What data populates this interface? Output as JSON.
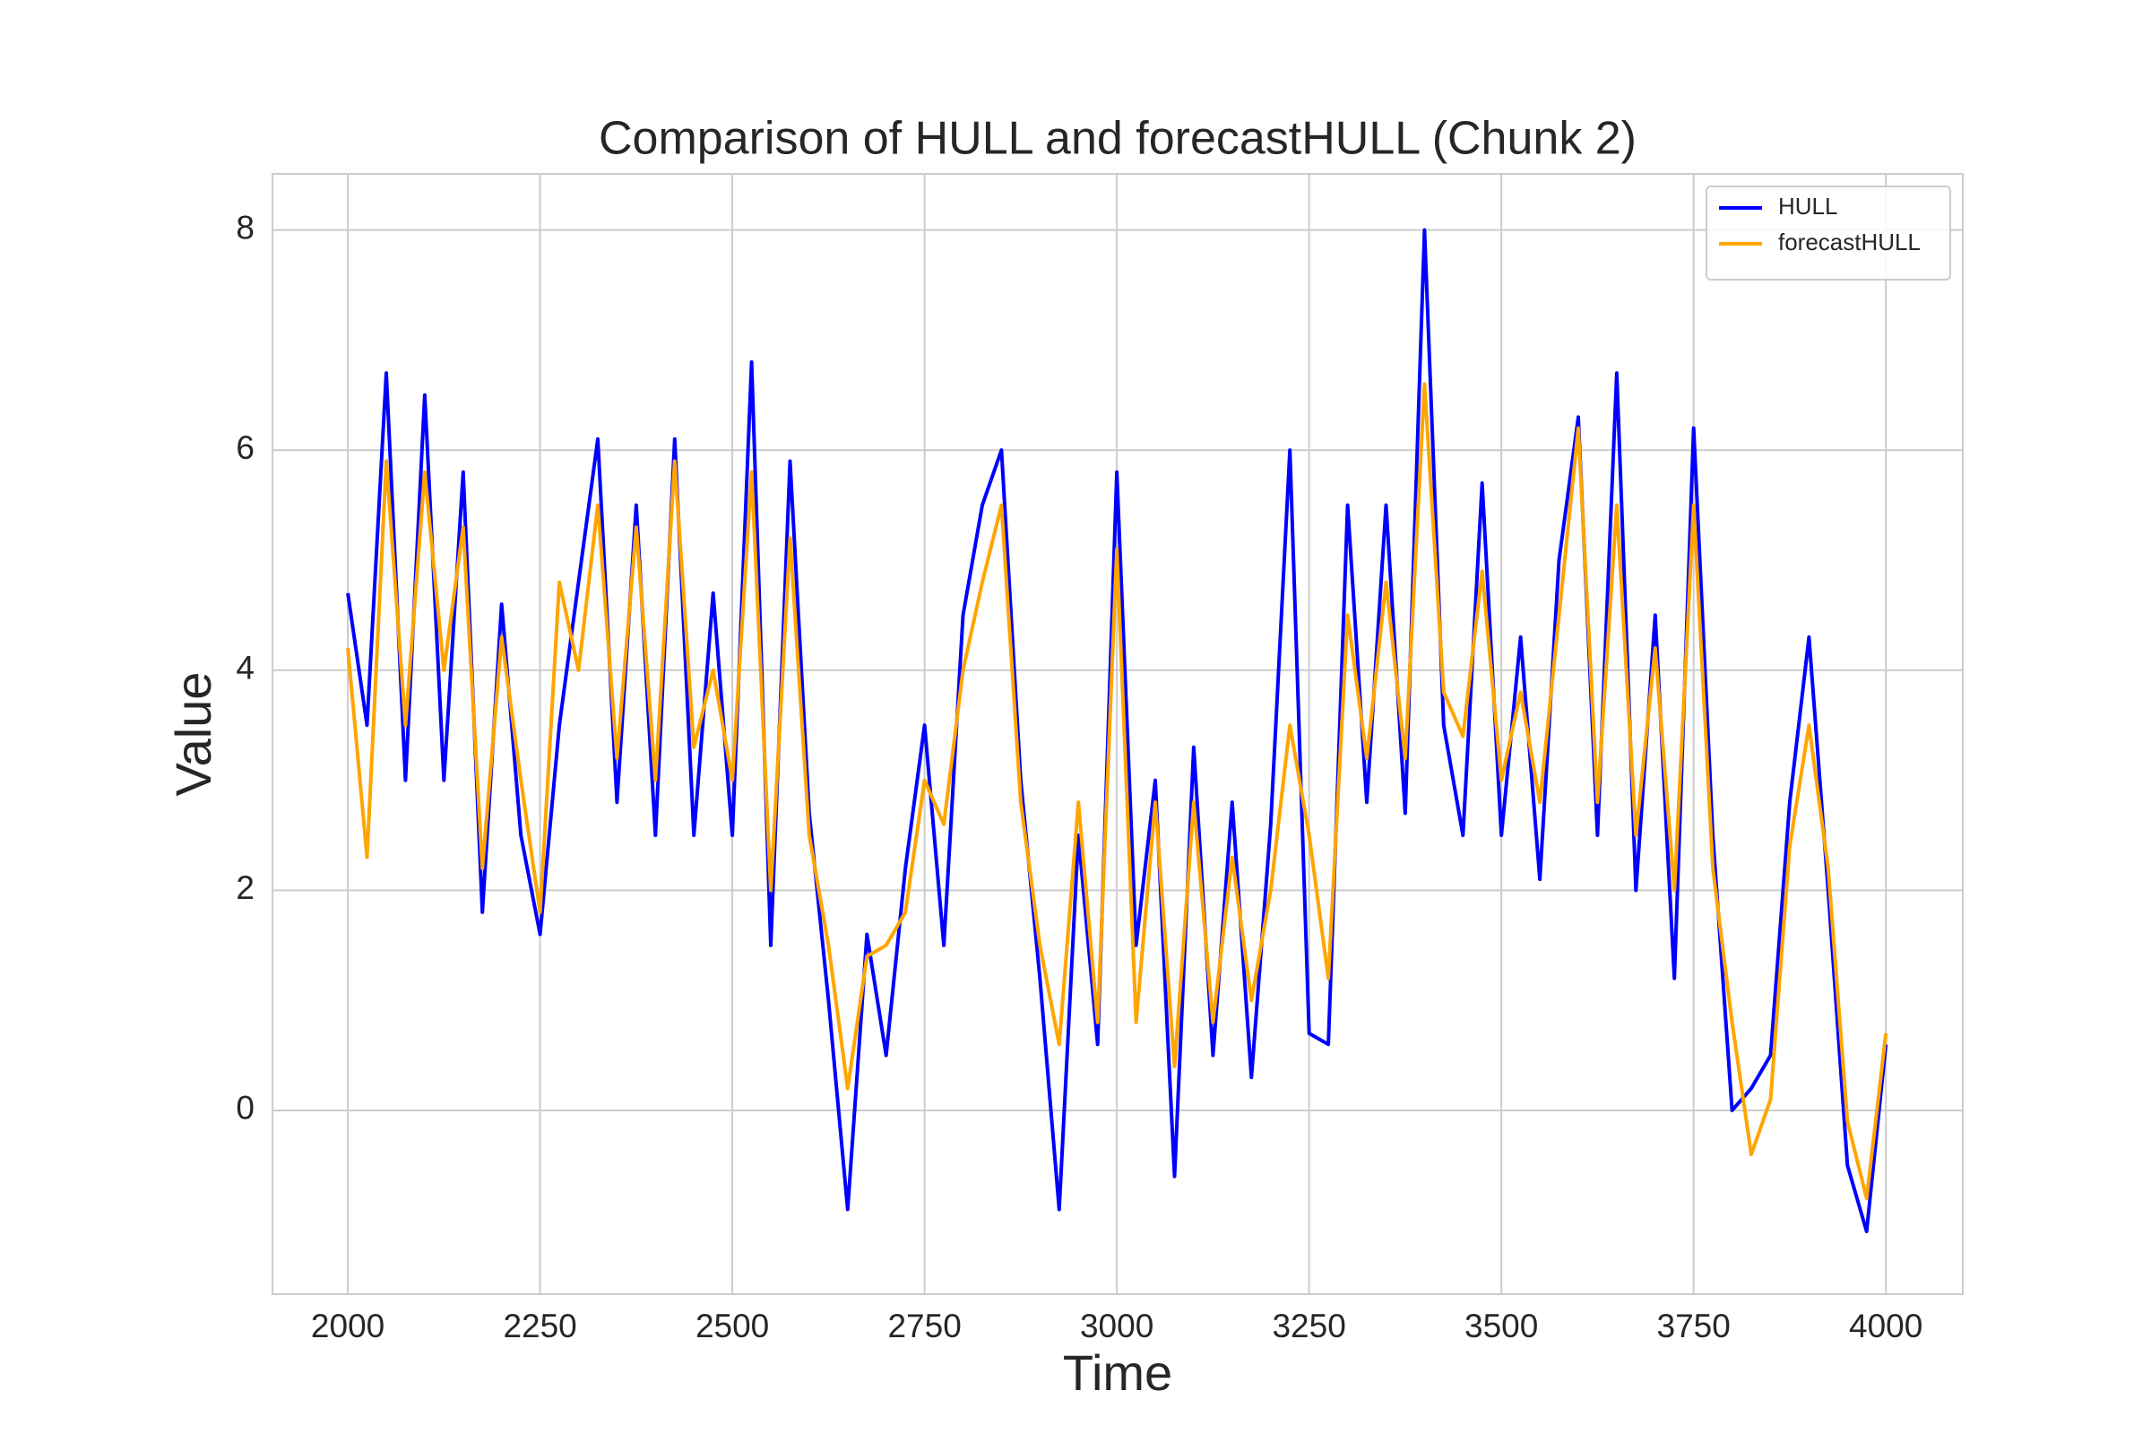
{
  "chart_data": {
    "type": "line",
    "title": "Comparison of HULL and forecastHULL (Chunk 2)",
    "x_label": "Time",
    "y_label": "Value",
    "x": [
      2000,
      2025,
      2050,
      2075,
      2100,
      2125,
      2150,
      2175,
      2200,
      2225,
      2250,
      2275,
      2300,
      2325,
      2350,
      2375,
      2400,
      2425,
      2450,
      2475,
      2500,
      2525,
      2550,
      2575,
      2600,
      2625,
      2650,
      2675,
      2700,
      2725,
      2750,
      2775,
      2800,
      2825,
      2850,
      2875,
      2900,
      2925,
      2950,
      2975,
      3000,
      3025,
      3050,
      3075,
      3100,
      3125,
      3150,
      3175,
      3200,
      3225,
      3250,
      3275,
      3300,
      3325,
      3350,
      3375,
      3400,
      3425,
      3450,
      3475,
      3500,
      3525,
      3550,
      3575,
      3600,
      3625,
      3650,
      3675,
      3700,
      3725,
      3750,
      3775,
      3800,
      3825,
      3850,
      3875,
      3900,
      3925,
      3950,
      3975,
      4000
    ],
    "series": [
      {
        "name": "HULL",
        "color": "#0000ff",
        "values": [
          4.7,
          3.5,
          6.7,
          3.0,
          6.5,
          3.0,
          5.8,
          1.8,
          4.6,
          2.5,
          1.6,
          3.5,
          4.8,
          6.1,
          2.8,
          5.5,
          2.5,
          6.1,
          2.5,
          4.7,
          2.5,
          6.8,
          1.5,
          5.9,
          2.7,
          1.0,
          -0.9,
          1.6,
          0.5,
          2.2,
          3.5,
          1.5,
          4.5,
          5.5,
          6.0,
          3.0,
          1.2,
          -0.9,
          2.5,
          0.6,
          5.8,
          1.5,
          3.0,
          -0.6,
          3.3,
          0.5,
          2.8,
          0.3,
          2.6,
          6.0,
          0.7,
          0.6,
          5.5,
          2.8,
          5.5,
          2.7,
          8.0,
          3.5,
          2.5,
          5.7,
          2.5,
          4.3,
          2.1,
          5.0,
          6.3,
          2.5,
          6.7,
          2.0,
          4.5,
          1.2,
          6.2,
          2.5,
          0.0,
          0.2,
          0.5,
          2.8,
          4.3,
          2.0,
          -0.5,
          -1.1,
          0.6
        ]
      },
      {
        "name": "forecastHULL",
        "color": "#ffa500",
        "values": [
          4.2,
          2.3,
          5.9,
          3.5,
          5.8,
          4.0,
          5.3,
          2.2,
          4.3,
          3.0,
          1.8,
          4.8,
          4.0,
          5.5,
          3.2,
          5.3,
          3.0,
          5.9,
          3.3,
          4.0,
          3.0,
          5.8,
          2.0,
          5.2,
          2.5,
          1.5,
          0.2,
          1.4,
          1.5,
          1.8,
          3.0,
          2.6,
          4.0,
          4.8,
          5.5,
          2.8,
          1.5,
          0.6,
          2.8,
          0.8,
          5.1,
          0.8,
          2.8,
          0.4,
          2.8,
          0.8,
          2.3,
          1.0,
          2.0,
          3.5,
          2.5,
          1.2,
          4.5,
          3.2,
          4.8,
          3.2,
          6.6,
          3.8,
          3.4,
          4.9,
          3.0,
          3.8,
          2.8,
          4.5,
          6.2,
          2.8,
          5.5,
          2.5,
          4.2,
          2.0,
          5.5,
          2.2,
          0.8,
          -0.4,
          0.1,
          2.4,
          3.5,
          2.2,
          -0.1,
          -0.8,
          0.7
        ]
      }
    ],
    "xlim": [
      1902,
      4100
    ],
    "ylim": [
      -1.67,
      8.51
    ],
    "xticks": [
      2000,
      2250,
      2500,
      2750,
      3000,
      3250,
      3500,
      3750,
      4000
    ],
    "yticks": [
      0,
      2,
      4,
      6,
      8
    ],
    "grid": true,
    "legend": "upper right"
  }
}
